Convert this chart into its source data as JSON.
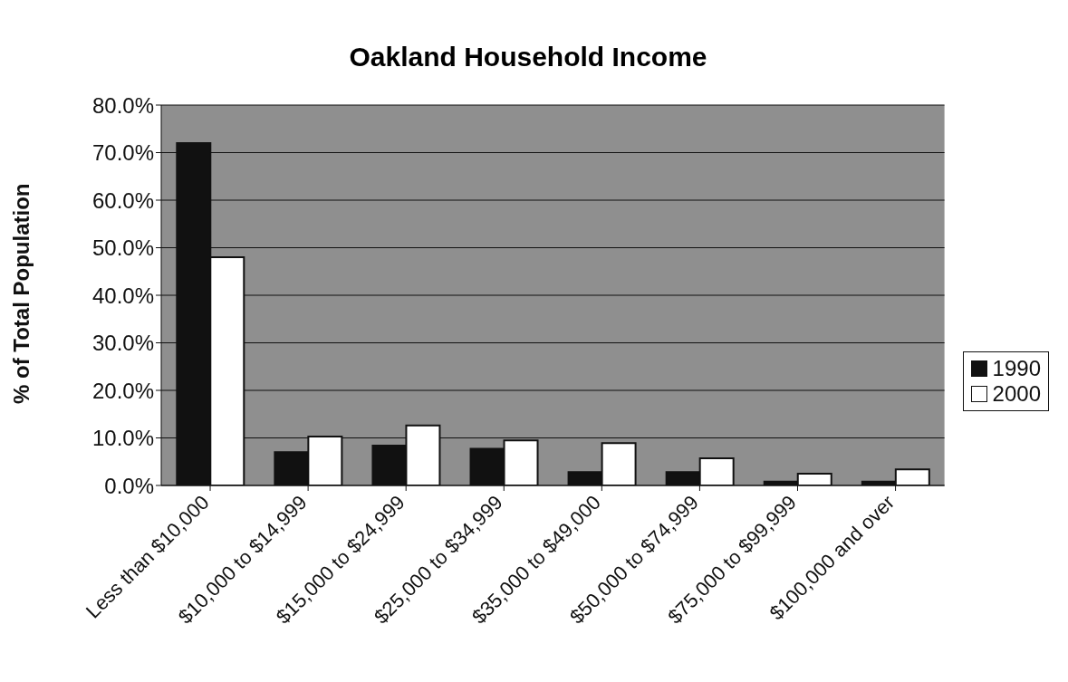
{
  "chart_data": {
    "type": "bar",
    "title": "Oakland Household Income",
    "ylabel": "% of Total Population",
    "categories": [
      "Less than $10,000",
      "$10,000 to $14,999",
      "$15,000 to $24,999",
      "$25,000 to $34,999",
      "$35,000 to $49,000",
      "$50,000 to $74,999",
      "$75,000 to $99,999",
      "$100,000 and over"
    ],
    "series": [
      {
        "name": "1990",
        "color": "#111111",
        "values": [
          72,
          7,
          8.4,
          7.7,
          2.8,
          2.8,
          0.8,
          0.8
        ]
      },
      {
        "name": "2000",
        "color": "#ffffff",
        "values": [
          48,
          10.3,
          12.6,
          9.5,
          8.9,
          5.7,
          2.5,
          3.4
        ]
      }
    ],
    "ylim": [
      0,
      80
    ],
    "yticks": [
      {
        "value": 0,
        "label": "0.0%"
      },
      {
        "value": 10,
        "label": "10.0%"
      },
      {
        "value": 20,
        "label": "20.0%"
      },
      {
        "value": 30,
        "label": "30.0%"
      },
      {
        "value": 40,
        "label": "40.0%"
      },
      {
        "value": 50,
        "label": "50.0%"
      },
      {
        "value": 60,
        "label": "60.0%"
      },
      {
        "value": 70,
        "label": "70.0%"
      },
      {
        "value": 80,
        "label": "80.0%"
      }
    ],
    "grid": "y",
    "legend": "right"
  }
}
